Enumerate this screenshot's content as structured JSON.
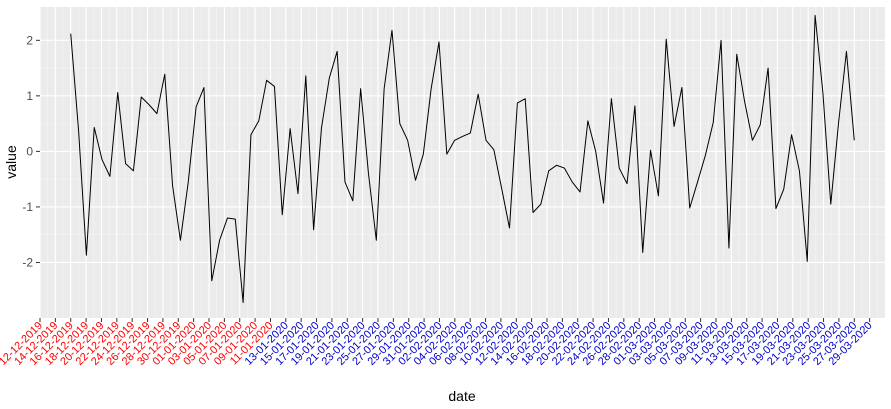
{
  "chart_data": {
    "type": "line",
    "xlabel": "date",
    "ylabel": "value",
    "ylim": [
      -3.0,
      2.6
    ],
    "y_ticks": [
      -2,
      -1,
      0,
      1,
      2
    ],
    "y_tick_labels": [
      "-2",
      "-1",
      "0",
      "1",
      "2"
    ],
    "grid": true,
    "x_range": [
      "2019-12-12",
      "2020-03-31"
    ],
    "x_tick_labels": [
      "12-12-2019",
      "14-12-2019",
      "16-12-2019",
      "18-12-2019",
      "20-12-2019",
      "22-12-2019",
      "24-12-2019",
      "26-12-2019",
      "28-12-2019",
      "30-12-2019",
      "01-01-2020",
      "03-01-2020",
      "05-01-2020",
      "07-01-2020",
      "09-01-2020",
      "11-01-2020",
      "13-01-2020",
      "15-01-2020",
      "17-01-2020",
      "19-01-2020",
      "21-01-2020",
      "23-01-2020",
      "25-01-2020",
      "27-01-2020",
      "29-01-2020",
      "31-01-2020",
      "02-02-2020",
      "04-02-2020",
      "06-02-2020",
      "08-02-2020",
      "10-02-2020",
      "12-02-2020",
      "14-02-2020",
      "16-02-2020",
      "18-02-2020",
      "20-02-2020",
      "22-02-2020",
      "24-02-2020",
      "26-02-2020",
      "28-02-2020",
      "01-03-2020",
      "03-03-2020",
      "05-03-2020",
      "07-03-2020",
      "09-03-2020",
      "11-03-2020",
      "13-03-2020",
      "15-03-2020",
      "17-03-2020",
      "19-03-2020",
      "21-03-2020",
      "23-03-2020",
      "25-03-2020",
      "27-03-2020",
      "29-03-2020"
    ],
    "x_tick_colors": {
      "red_through": "11-01-2020",
      "red": "#ff0000",
      "blue": "#0000cd"
    },
    "series": [
      {
        "x_start": "2019-12-16",
        "x_end": "2020-03-27",
        "values": [
          2.12,
          0.38,
          -1.87,
          0.43,
          -0.15,
          -0.45,
          1.06,
          -0.22,
          -0.35,
          0.98,
          0.84,
          0.68,
          1.39,
          -0.62,
          -1.6,
          -0.55,
          0.8,
          1.15,
          -2.33,
          -1.6,
          -1.2,
          -1.22,
          -2.72,
          0.3,
          0.55,
          1.28,
          1.17,
          -1.14,
          0.41,
          -0.76,
          1.36,
          -1.41,
          0.42,
          1.32,
          1.8,
          -0.55,
          -0.89,
          1.13,
          -0.4,
          -1.6,
          1.13,
          2.18,
          0.5,
          0.2,
          -0.52,
          -0.05,
          1.13,
          1.97,
          -0.05,
          0.2,
          0.27,
          0.33,
          1.03,
          0.2,
          0.03,
          -0.67,
          -1.38,
          0.87,
          0.95,
          -1.1,
          -0.95,
          -0.35,
          -0.25,
          -0.3,
          -0.55,
          -0.73,
          0.55,
          0.0,
          -0.93,
          0.95,
          -0.3,
          -0.58,
          0.82,
          -1.82,
          0.02,
          -0.8,
          2.02,
          0.45,
          1.15,
          -1.02,
          -0.55,
          -0.07,
          0.52,
          2.0,
          -1.74,
          1.75,
          0.9,
          0.2,
          0.48,
          1.5,
          -1.03,
          -0.68,
          0.3,
          -0.35,
          -1.98,
          2.45,
          1.05,
          -0.95,
          0.52,
          1.8,
          0.2
        ]
      }
    ],
    "colors": {
      "panel": "#ebebeb",
      "grid_major": "#ffffff",
      "grid_minor": "#f5f5f5",
      "line": "#000000",
      "tick": "#333333"
    }
  }
}
